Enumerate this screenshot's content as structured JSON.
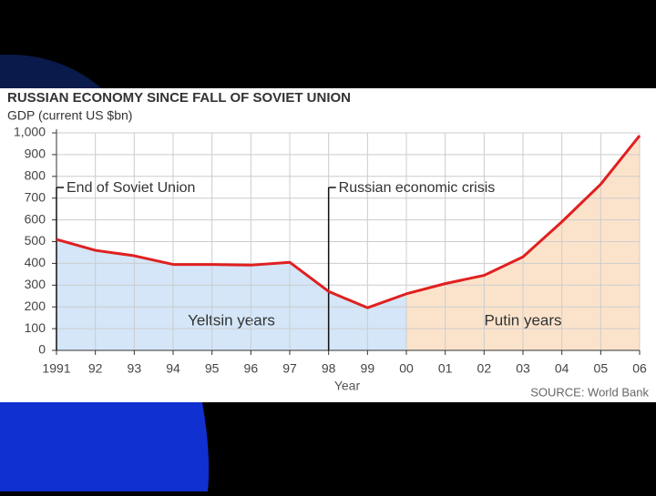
{
  "chart_data": {
    "type": "line",
    "title": "RUSSIAN ECONOMY SINCE FALL OF SOVIET UNION",
    "subtitle": "GDP (current US $bn)",
    "x_label": "Year",
    "source": "SOURCE: World Bank",
    "categories": [
      "1991",
      "92",
      "93",
      "94",
      "95",
      "96",
      "97",
      "98",
      "99",
      "00",
      "01",
      "02",
      "03",
      "04",
      "05",
      "06"
    ],
    "series": [
      {
        "name": "GDP",
        "color": "#e02020",
        "values": [
          510,
          460,
          435,
          395,
          395,
          392,
          405,
          271,
          196,
          260,
          307,
          345,
          430,
          591,
          764,
          987
        ]
      }
    ],
    "ylim": [
      0,
      1000
    ],
    "yticks": [
      0,
      100,
      200,
      300,
      400,
      500,
      600,
      700,
      800,
      {
        "value": 900,
        "label": "900"
      },
      {
        "value": 1000,
        "label": "1,000"
      }
    ],
    "grid": true,
    "regions": [
      {
        "label": "Yeltsin years",
        "from": "1991",
        "to": "00",
        "color": "#d4e6f8"
      },
      {
        "label": "Putin years",
        "from": "00",
        "to": "06",
        "color": "#fbe3cb"
      }
    ],
    "annotations": [
      {
        "label": "End of Soviet Union",
        "at": "1991"
      },
      {
        "label": "Russian economic crisis",
        "at": "98"
      }
    ]
  }
}
